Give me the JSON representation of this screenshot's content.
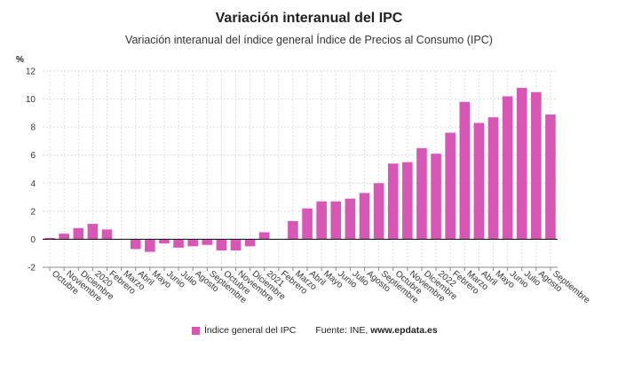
{
  "chart_data": {
    "type": "bar",
    "title": "Variación interanual del IPC",
    "subtitle": "Variación interanual del índice general Índice de Precios al Consumo (IPC)",
    "ylabel": "%",
    "ylim": [
      -2,
      12
    ],
    "yticks": [
      -2,
      0,
      2,
      4,
      6,
      8,
      10,
      12
    ],
    "grid": true,
    "legend_position": "bottom",
    "color": "#d857b6",
    "categories": [
      "Octubre",
      "Noviembre",
      "Diciembre",
      "2020",
      "Febrero",
      "Marzo",
      "Abril",
      "Mayo",
      "Junio",
      "Julio",
      "Agosto",
      "Septiembre",
      "Octubre",
      "Noviembre",
      "Diciembre",
      "2021",
      "Febrero",
      "Marzo",
      "Abril",
      "Mayo",
      "Junio",
      "Julio",
      "Agosto",
      "Septiembre",
      "Octubre",
      "Noviembre",
      "Diciembre",
      "2022",
      "Febrero",
      "Marzo",
      "Abril",
      "Mayo",
      "Junio",
      "Julio",
      "Agosto",
      "Septiembre"
    ],
    "series": [
      {
        "name": "Índice general del IPC",
        "values": [
          0.1,
          0.4,
          0.8,
          1.1,
          0.7,
          0.0,
          -0.7,
          -0.9,
          -0.3,
          -0.6,
          -0.5,
          -0.4,
          -0.8,
          -0.8,
          -0.5,
          0.5,
          0.0,
          1.3,
          2.2,
          2.7,
          2.7,
          2.9,
          3.3,
          4.0,
          5.4,
          5.5,
          6.5,
          6.1,
          7.6,
          9.8,
          8.3,
          8.7,
          10.2,
          10.8,
          10.5,
          8.9
        ]
      }
    ]
  },
  "legend": {
    "series_label": "Índice general del IPC",
    "source_prefix": "Fuente: INE, ",
    "source_site": "www.epdata.es"
  }
}
